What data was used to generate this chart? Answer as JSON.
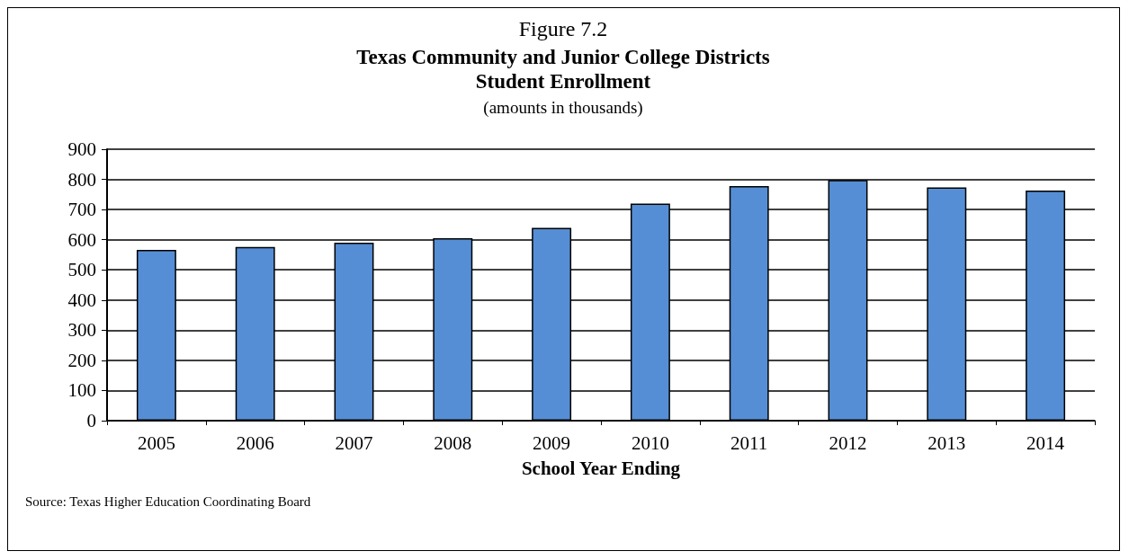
{
  "chart_data": {
    "type": "bar",
    "title": "Figure 7.2",
    "subtitle": "Texas Community and Junior College Districts\nStudent Enrollment",
    "annotations": [
      "(amounts in thousands)",
      "Source: Texas Higher Education Coordinating Board"
    ],
    "xlabel": "School Year Ending",
    "categories": [
      "2005",
      "2006",
      "2007",
      "2008",
      "2009",
      "2010",
      "2011",
      "2012",
      "2013",
      "2014"
    ],
    "values": [
      566,
      576,
      590,
      605,
      639,
      720,
      778,
      798,
      773,
      763
    ],
    "color": "#558ed5",
    "ylim": [
      0,
      900
    ],
    "yticks": [
      0,
      100,
      200,
      300,
      400,
      500,
      600,
      700,
      800,
      900
    ],
    "grid": "y"
  }
}
